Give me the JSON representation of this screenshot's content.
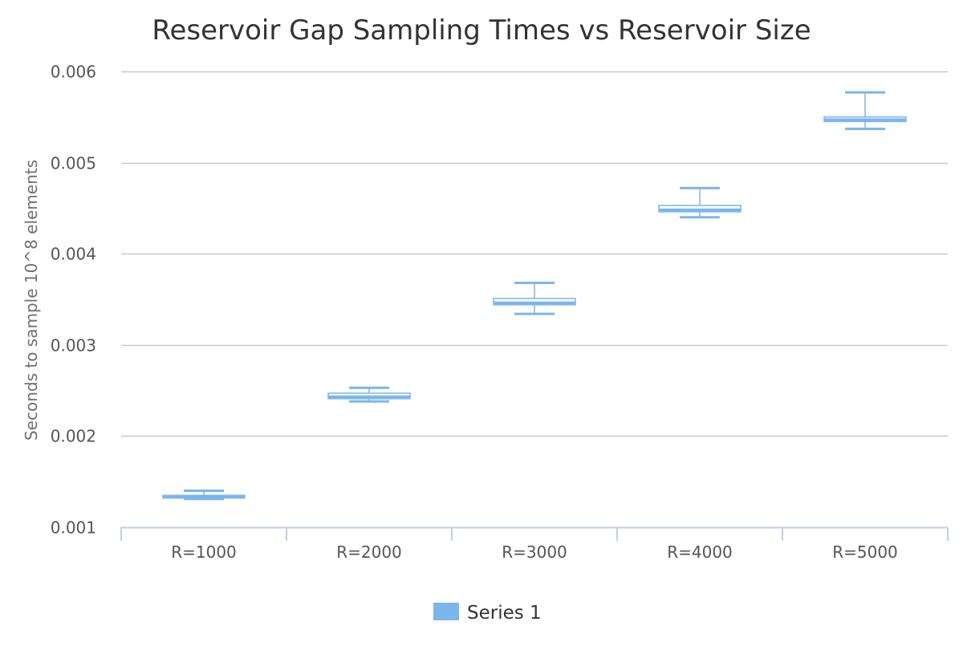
{
  "chart_data": {
    "type": "boxplot",
    "title": "Reservoir Gap Sampling Times vs Reservoir Size",
    "xlabel": "",
    "ylabel": "Seconds to sample 10^8 elements",
    "categories": [
      "R=1000",
      "R=2000",
      "R=3000",
      "R=4000",
      "R=5000"
    ],
    "ylim": [
      0.001,
      0.006
    ],
    "yticks": [
      0.001,
      0.002,
      0.003,
      0.004,
      0.005,
      0.006
    ],
    "ytick_labels": [
      "0.001",
      "0.002",
      "0.003",
      "0.004",
      "0.005",
      "0.006"
    ],
    "grid": true,
    "legend_position": "bottom",
    "series": [
      {
        "name": "Series 1",
        "color": "#7cb5ec",
        "boxes": [
          {
            "category": "R=1000",
            "min": 0.00131,
            "q1": 0.00132,
            "median": 0.001335,
            "q3": 0.00135,
            "max": 0.0014
          },
          {
            "category": "R=2000",
            "min": 0.00238,
            "q1": 0.00241,
            "median": 0.00243,
            "q3": 0.00247,
            "max": 0.00253
          },
          {
            "category": "R=3000",
            "min": 0.00334,
            "q1": 0.00344,
            "median": 0.00346,
            "q3": 0.00351,
            "max": 0.00368
          },
          {
            "category": "R=4000",
            "min": 0.0044,
            "q1": 0.00446,
            "median": 0.00448,
            "q3": 0.00453,
            "max": 0.00472
          },
          {
            "category": "R=5000",
            "min": 0.00537,
            "q1": 0.00545,
            "median": 0.00547,
            "q3": 0.0055,
            "max": 0.00577
          }
        ]
      }
    ]
  }
}
